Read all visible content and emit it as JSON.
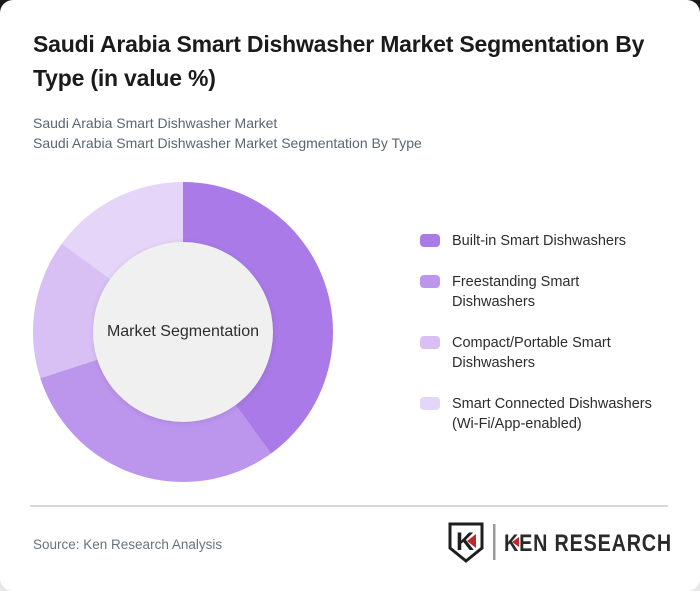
{
  "header": {
    "title": "Saudi Arabia Smart Dishwasher Market Segmentation By Type (in value %)",
    "subtitles": [
      "Saudi Arabia Smart Dishwasher Market",
      "Saudi Arabia Smart Dishwasher Market Segmentation By Type"
    ]
  },
  "chart_data": {
    "type": "pie",
    "variant": "donut",
    "title": "Saudi Arabia Smart Dishwasher Market Segmentation By Type (in value %)",
    "center_label": "Market Segmentation",
    "labels": [
      "Built-in Smart Dishwashers",
      "Freestanding Smart Dishwashers",
      "Compact/Portable Smart Dishwashers",
      "Smart Connected Dishwashers (Wi-Fi/App-enabled)"
    ],
    "values": [
      40,
      30,
      15,
      15
    ],
    "colors": [
      "#a97ae8",
      "#bc95ed",
      "#d8c0f4",
      "#e5d5f8"
    ],
    "hole_color": "#f0f0f0",
    "start_angle_deg": 0,
    "legend_position": "right",
    "grid": false
  },
  "footer": {
    "source": "Source: Ken Research Analysis",
    "logo_mark": "K",
    "logo_text": "KEN RESEARCH"
  },
  "theme": {
    "accent_red": "#c0272d",
    "title_color": "#1b1b1b",
    "subtitle_color": "#5a6671"
  }
}
